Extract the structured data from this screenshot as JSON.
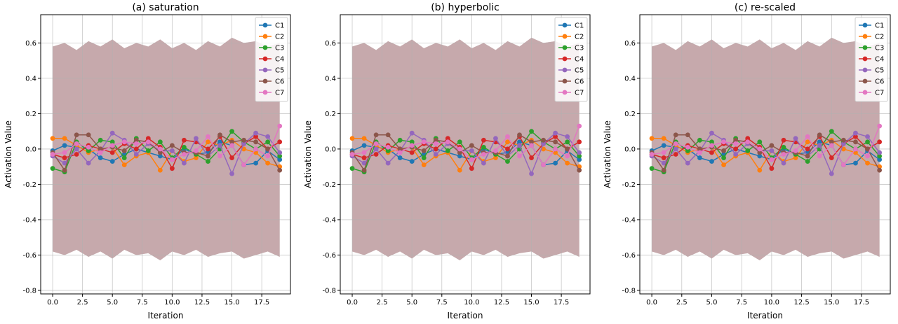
{
  "chart_data": [
    {
      "type": "line",
      "title": "(a) saturation",
      "xlabel": "Iteration",
      "ylabel": "Activation Value",
      "xlim": [
        -1,
        19.9
      ],
      "ylim": [
        -0.82,
        0.76
      ],
      "x_ticks": [
        0.0,
        2.5,
        5.0,
        7.5,
        10.0,
        12.5,
        15.0,
        17.5
      ],
      "y_ticks": [
        -0.8,
        -0.6,
        -0.4,
        -0.2,
        0.0,
        0.2,
        0.4,
        0.6
      ],
      "grid": true,
      "legend_position": "top-right",
      "x": [
        0,
        1,
        2,
        3,
        4,
        5,
        6,
        7,
        8,
        9,
        10,
        11,
        12,
        13,
        14,
        15,
        16,
        17,
        18,
        19
      ],
      "band_lower": [
        -0.58,
        -0.6,
        -0.57,
        -0.61,
        -0.58,
        -0.62,
        -0.57,
        -0.6,
        -0.59,
        -0.63,
        -0.58,
        -0.6,
        -0.57,
        -0.61,
        -0.59,
        -0.58,
        -0.62,
        -0.6,
        -0.58,
        -0.61
      ],
      "band_upper": [
        0.58,
        0.6,
        0.56,
        0.61,
        0.58,
        0.62,
        0.57,
        0.6,
        0.58,
        0.62,
        0.57,
        0.6,
        0.56,
        0.61,
        0.58,
        0.63,
        0.6,
        0.61,
        0.58,
        0.6
      ],
      "series": [
        {
          "name": "C1",
          "color": "#1f77b4",
          "values": [
            -0.01,
            0.02,
            0.01,
            0.0,
            -0.05,
            -0.07,
            -0.03,
            0.0,
            -0.02,
            -0.04,
            -0.06,
            0.0,
            -0.03,
            -0.02,
            0.04,
            0.02,
            -0.09,
            -0.08,
            -0.01,
            -0.06
          ]
        },
        {
          "name": "C2",
          "color": "#ff7f0e",
          "values": [
            0.06,
            0.06,
            0.02,
            -0.02,
            0.0,
            0.01,
            -0.09,
            -0.04,
            -0.02,
            -0.12,
            -0.01,
            -0.07,
            -0.05,
            0.04,
            0.02,
            0.05,
            0.0,
            -0.02,
            -0.08,
            -0.1
          ]
        },
        {
          "name": "C3",
          "color": "#2ca02c",
          "values": [
            -0.11,
            -0.13,
            0.04,
            -0.01,
            0.05,
            0.04,
            -0.05,
            0.06,
            -0.01,
            0.04,
            -0.05,
            0.01,
            -0.03,
            -0.07,
            0.0,
            0.1,
            0.04,
            0.0,
            0.04,
            -0.04
          ]
        },
        {
          "name": "C4",
          "color": "#d62728",
          "values": [
            -0.03,
            -0.05,
            -0.03,
            0.02,
            0.0,
            -0.02,
            0.03,
            0.0,
            0.06,
            0.01,
            -0.11,
            0.05,
            0.04,
            0.0,
            0.07,
            -0.05,
            0.03,
            0.07,
            0.0,
            0.04
          ]
        },
        {
          "name": "C5",
          "color": "#9467bd",
          "values": [
            -0.04,
            -0.08,
            0.0,
            -0.08,
            -0.01,
            0.09,
            0.05,
            -0.03,
            0.03,
            -0.01,
            -0.01,
            -0.08,
            0.06,
            -0.04,
            0.02,
            -0.14,
            0.03,
            0.09,
            0.07,
            -0.02
          ]
        },
        {
          "name": "C6",
          "color": "#8c564b",
          "values": [
            -0.02,
            -0.12,
            0.08,
            0.08,
            0.0,
            0.01,
            -0.01,
            0.05,
            0.04,
            -0.02,
            0.02,
            -0.02,
            -0.02,
            -0.04,
            0.08,
            0.04,
            0.05,
            0.04,
            0.0,
            -0.12
          ]
        },
        {
          "name": "C7",
          "color": "#e377c2",
          "values": [
            -0.03,
            -0.02,
            0.03,
            0.01,
            -0.02,
            0.02,
            0.04,
            0.03,
            0.04,
            0.0,
            -0.06,
            -0.03,
            -0.01,
            0.07,
            -0.04,
            0.02,
            -0.09,
            0.0,
            -0.04,
            0.13
          ]
        }
      ]
    },
    {
      "type": "line",
      "title": "(b) hyperbolic",
      "xlabel": "Iteration",
      "ylabel": "Activation Value",
      "xlim": [
        -1,
        19.9
      ],
      "ylim": [
        -0.82,
        0.76
      ],
      "x_ticks": [
        0.0,
        2.5,
        5.0,
        7.5,
        10.0,
        12.5,
        15.0,
        17.5
      ],
      "y_ticks": [
        -0.8,
        -0.6,
        -0.4,
        -0.2,
        0.0,
        0.2,
        0.4,
        0.6
      ],
      "grid": true,
      "legend_position": "top-right",
      "x": [
        0,
        1,
        2,
        3,
        4,
        5,
        6,
        7,
        8,
        9,
        10,
        11,
        12,
        13,
        14,
        15,
        16,
        17,
        18,
        19
      ],
      "band_lower": [
        -0.58,
        -0.6,
        -0.57,
        -0.61,
        -0.58,
        -0.62,
        -0.57,
        -0.6,
        -0.59,
        -0.63,
        -0.58,
        -0.6,
        -0.57,
        -0.61,
        -0.59,
        -0.58,
        -0.62,
        -0.6,
        -0.58,
        -0.61
      ],
      "band_upper": [
        0.58,
        0.6,
        0.56,
        0.61,
        0.58,
        0.62,
        0.57,
        0.6,
        0.58,
        0.62,
        0.57,
        0.6,
        0.56,
        0.61,
        0.58,
        0.63,
        0.6,
        0.61,
        0.58,
        0.6
      ],
      "series": [
        {
          "name": "C1",
          "color": "#1f77b4",
          "values": [
            -0.01,
            0.02,
            0.01,
            0.0,
            -0.05,
            -0.07,
            -0.03,
            0.0,
            -0.02,
            -0.04,
            -0.06,
            0.0,
            -0.03,
            -0.02,
            0.04,
            0.02,
            -0.09,
            -0.08,
            -0.01,
            -0.06
          ]
        },
        {
          "name": "C2",
          "color": "#ff7f0e",
          "values": [
            0.06,
            0.06,
            0.02,
            -0.02,
            0.0,
            0.01,
            -0.09,
            -0.04,
            -0.02,
            -0.12,
            -0.01,
            -0.07,
            -0.05,
            0.04,
            0.02,
            0.05,
            0.0,
            -0.02,
            -0.08,
            -0.1
          ]
        },
        {
          "name": "C3",
          "color": "#2ca02c",
          "values": [
            -0.11,
            -0.13,
            0.04,
            -0.01,
            0.05,
            0.04,
            -0.05,
            0.06,
            -0.01,
            0.04,
            -0.05,
            0.01,
            -0.03,
            -0.07,
            0.0,
            0.1,
            0.04,
            0.0,
            0.04,
            -0.04
          ]
        },
        {
          "name": "C4",
          "color": "#d62728",
          "values": [
            -0.03,
            -0.05,
            -0.03,
            0.02,
            0.0,
            -0.02,
            0.03,
            0.0,
            0.06,
            0.01,
            -0.11,
            0.05,
            0.04,
            0.0,
            0.07,
            -0.05,
            0.03,
            0.07,
            0.0,
            0.04
          ]
        },
        {
          "name": "C5",
          "color": "#9467bd",
          "values": [
            -0.04,
            -0.08,
            0.0,
            -0.08,
            -0.01,
            0.09,
            0.05,
            -0.03,
            0.03,
            -0.01,
            -0.01,
            -0.08,
            0.06,
            -0.04,
            0.02,
            -0.14,
            0.03,
            0.09,
            0.07,
            -0.02
          ]
        },
        {
          "name": "C6",
          "color": "#8c564b",
          "values": [
            -0.02,
            -0.12,
            0.08,
            0.08,
            0.0,
            0.01,
            -0.01,
            0.05,
            0.04,
            -0.02,
            0.02,
            -0.02,
            -0.02,
            -0.04,
            0.08,
            0.04,
            0.05,
            0.04,
            0.0,
            -0.12
          ]
        },
        {
          "name": "C7",
          "color": "#e377c2",
          "values": [
            -0.03,
            -0.02,
            0.03,
            0.01,
            -0.02,
            0.02,
            0.04,
            0.03,
            0.04,
            0.0,
            -0.06,
            -0.03,
            -0.01,
            0.07,
            -0.04,
            0.02,
            -0.09,
            0.0,
            -0.04,
            0.13
          ]
        }
      ]
    },
    {
      "type": "line",
      "title": "(c) re-scaled",
      "xlabel": "Iteration",
      "ylabel": "Activation Value",
      "xlim": [
        -1,
        19.9
      ],
      "ylim": [
        -0.82,
        0.76
      ],
      "x_ticks": [
        0.0,
        2.5,
        5.0,
        7.5,
        10.0,
        12.5,
        15.0,
        17.5
      ],
      "y_ticks": [
        -0.8,
        -0.6,
        -0.4,
        -0.2,
        0.0,
        0.2,
        0.4,
        0.6
      ],
      "grid": true,
      "legend_position": "top-right",
      "x": [
        0,
        1,
        2,
        3,
        4,
        5,
        6,
        7,
        8,
        9,
        10,
        11,
        12,
        13,
        14,
        15,
        16,
        17,
        18,
        19
      ],
      "band_lower": [
        -0.58,
        -0.6,
        -0.57,
        -0.61,
        -0.58,
        -0.62,
        -0.57,
        -0.6,
        -0.59,
        -0.63,
        -0.58,
        -0.6,
        -0.57,
        -0.61,
        -0.59,
        -0.58,
        -0.62,
        -0.6,
        -0.58,
        -0.61
      ],
      "band_upper": [
        0.58,
        0.6,
        0.56,
        0.61,
        0.58,
        0.62,
        0.57,
        0.6,
        0.58,
        0.62,
        0.57,
        0.6,
        0.56,
        0.61,
        0.58,
        0.63,
        0.6,
        0.61,
        0.58,
        0.6
      ],
      "series": [
        {
          "name": "C1",
          "color": "#1f77b4",
          "values": [
            -0.01,
            0.02,
            0.01,
            0.0,
            -0.05,
            -0.07,
            -0.03,
            0.0,
            -0.02,
            -0.04,
            -0.06,
            0.0,
            -0.03,
            -0.02,
            0.04,
            0.02,
            -0.09,
            -0.08,
            -0.01,
            -0.06
          ]
        },
        {
          "name": "C2",
          "color": "#ff7f0e",
          "values": [
            0.06,
            0.06,
            0.02,
            -0.02,
            0.0,
            0.01,
            -0.09,
            -0.04,
            -0.02,
            -0.12,
            -0.01,
            -0.07,
            -0.05,
            0.04,
            0.02,
            0.05,
            0.0,
            -0.02,
            -0.08,
            -0.1
          ]
        },
        {
          "name": "C3",
          "color": "#2ca02c",
          "values": [
            -0.11,
            -0.13,
            0.04,
            -0.01,
            0.05,
            0.04,
            -0.05,
            0.06,
            -0.01,
            0.04,
            -0.05,
            0.01,
            -0.03,
            -0.07,
            0.0,
            0.1,
            0.04,
            0.0,
            0.04,
            -0.04
          ]
        },
        {
          "name": "C4",
          "color": "#d62728",
          "values": [
            -0.03,
            -0.05,
            -0.03,
            0.02,
            0.0,
            -0.02,
            0.03,
            0.0,
            0.06,
            0.01,
            -0.11,
            0.05,
            0.04,
            0.0,
            0.07,
            -0.05,
            0.03,
            0.07,
            0.0,
            0.04
          ]
        },
        {
          "name": "C5",
          "color": "#9467bd",
          "values": [
            -0.04,
            -0.08,
            0.0,
            -0.08,
            -0.01,
            0.09,
            0.05,
            -0.03,
            0.03,
            -0.01,
            -0.01,
            -0.08,
            0.06,
            -0.04,
            0.02,
            -0.14,
            0.03,
            0.09,
            0.07,
            -0.02
          ]
        },
        {
          "name": "C6",
          "color": "#8c564b",
          "values": [
            -0.02,
            -0.12,
            0.08,
            0.08,
            0.0,
            0.01,
            -0.01,
            0.05,
            0.04,
            -0.02,
            0.02,
            -0.02,
            -0.02,
            -0.04,
            0.08,
            0.04,
            0.05,
            0.04,
            0.0,
            -0.12
          ]
        },
        {
          "name": "C7",
          "color": "#e377c2",
          "values": [
            -0.03,
            -0.02,
            0.03,
            0.01,
            -0.02,
            0.02,
            0.04,
            0.03,
            0.04,
            0.0,
            -0.06,
            -0.03,
            -0.01,
            0.07,
            -0.04,
            0.02,
            -0.09,
            0.0,
            -0.04,
            0.13
          ]
        }
      ]
    }
  ]
}
